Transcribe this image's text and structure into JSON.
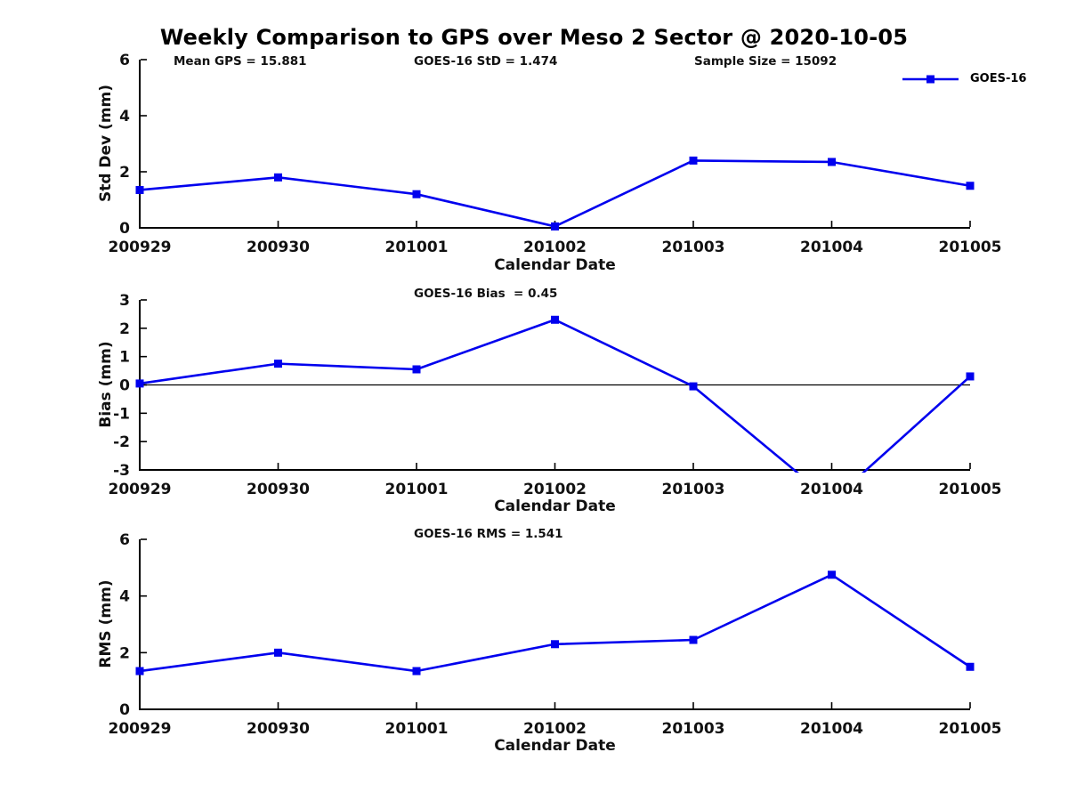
{
  "title": "Weekly Comparison to GPS over Meso 2 Sector @ 2020-10-05",
  "accent_color": "#0000EE",
  "chart_data": [
    {
      "type": "line",
      "name": "std-dev",
      "ylabel": "Std Dev (mm)",
      "xlabel": "Calendar Date",
      "categories": [
        "200929",
        "200930",
        "201001",
        "201002",
        "201003",
        "201004",
        "201005"
      ],
      "series": [
        {
          "name": "GOES-16",
          "color": "#0000EE",
          "marker": "square",
          "values": [
            1.35,
            1.8,
            1.2,
            0.05,
            2.4,
            2.35,
            1.5
          ]
        }
      ],
      "ylim": [
        0,
        6
      ],
      "yticks": [
        0,
        2,
        4,
        6
      ],
      "grid": false,
      "legend_position": "top-right-outside",
      "annotations": [
        "Mean GPS = 15.881",
        "GOES-16 StD = 1.474",
        "Sample Size = 15092"
      ]
    },
    {
      "type": "line",
      "name": "bias",
      "ylabel": "Bias (mm)",
      "xlabel": "Calendar Date",
      "categories": [
        "200929",
        "200930",
        "201001",
        "201002",
        "201003",
        "201004",
        "201005"
      ],
      "series": [
        {
          "name": "GOES-16",
          "color": "#0000EE",
          "marker": "square",
          "values": [
            0.05,
            0.75,
            0.55,
            2.3,
            -0.05,
            -4.1,
            0.3
          ]
        }
      ],
      "ylim": [
        -3,
        3
      ],
      "yticks": [
        -3,
        -2,
        -1,
        0,
        1,
        2,
        3
      ],
      "zero_line": true,
      "grid": false,
      "annotations": [
        "GOES-16 Bias  = 0.45"
      ]
    },
    {
      "type": "line",
      "name": "rms",
      "ylabel": "RMS (mm)",
      "xlabel": "Calendar Date",
      "categories": [
        "200929",
        "200930",
        "201001",
        "201002",
        "201003",
        "201004",
        "201005"
      ],
      "series": [
        {
          "name": "GOES-16",
          "color": "#0000EE",
          "marker": "square",
          "values": [
            1.35,
            2.0,
            1.35,
            2.3,
            2.45,
            4.75,
            1.5
          ]
        }
      ],
      "ylim": [
        0,
        6
      ],
      "yticks": [
        0,
        2,
        4,
        6
      ],
      "grid": false,
      "annotations": [
        "GOES-16 RMS = 1.541"
      ]
    }
  ]
}
